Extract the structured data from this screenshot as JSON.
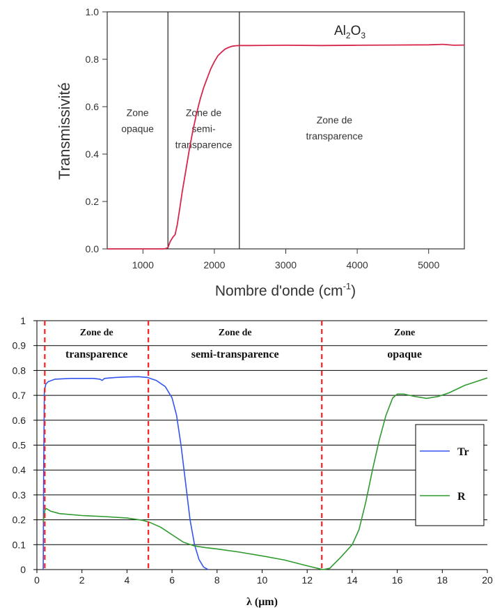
{
  "chart_data": [
    {
      "type": "line",
      "xlabel": "Nombre d'onde (cm",
      "xlabel_sup": "-1",
      "xlabel_end": ")",
      "ylabel": "Transmissivité",
      "xlim": [
        500,
        5500
      ],
      "ylim": [
        0,
        1.0
      ],
      "xticks": [
        1000,
        2000,
        3000,
        4000,
        5000
      ],
      "xtick_labels": [
        "1000",
        "2000",
        "3000",
        "4000",
        "5000"
      ],
      "yticks": [
        0.0,
        0.2,
        0.4,
        0.6,
        0.8,
        1.0
      ],
      "ytick_labels": [
        "0.0",
        "0.2",
        "0.4",
        "0.6",
        "0.8",
        "1.0"
      ],
      "vlines": [
        1350,
        2350
      ],
      "label": {
        "base": "Al",
        "sub1": "2",
        "mid": "O",
        "sub2": "3"
      },
      "zones": [
        {
          "lines": [
            "Zone",
            "opaque"
          ]
        },
        {
          "lines": [
            "Zone de",
            "semi-",
            "transparence"
          ]
        },
        {
          "lines": [
            "Zone de",
            "transparence"
          ]
        }
      ],
      "series": [
        {
          "color": "#d6264a",
          "points": [
            [
              500,
              0.0
            ],
            [
              1000,
              0.0
            ],
            [
              1300,
              0.0
            ],
            [
              1350,
              0.005
            ],
            [
              1380,
              0.03
            ],
            [
              1420,
              0.05
            ],
            [
              1450,
              0.06
            ],
            [
              1480,
              0.1
            ],
            [
              1520,
              0.18
            ],
            [
              1550,
              0.24
            ],
            [
              1600,
              0.33
            ],
            [
              1650,
              0.42
            ],
            [
              1700,
              0.5
            ],
            [
              1750,
              0.57
            ],
            [
              1800,
              0.63
            ],
            [
              1850,
              0.68
            ],
            [
              1900,
              0.72
            ],
            [
              1950,
              0.76
            ],
            [
              2000,
              0.79
            ],
            [
              2050,
              0.815
            ],
            [
              2100,
              0.83
            ],
            [
              2150,
              0.843
            ],
            [
              2200,
              0.85
            ],
            [
              2250,
              0.855
            ],
            [
              2300,
              0.857
            ],
            [
              2350,
              0.858
            ],
            [
              2500,
              0.858
            ],
            [
              3000,
              0.859
            ],
            [
              3500,
              0.858
            ],
            [
              4000,
              0.859
            ],
            [
              4500,
              0.86
            ],
            [
              5000,
              0.861
            ],
            [
              5200,
              0.863
            ],
            [
              5350,
              0.859
            ],
            [
              5500,
              0.86
            ]
          ]
        }
      ]
    },
    {
      "type": "line",
      "xlabel": "λ (μm)",
      "xlim": [
        0,
        20
      ],
      "ylim": [
        0,
        1
      ],
      "xticks": [
        0,
        2,
        4,
        6,
        8,
        10,
        12,
        14,
        16,
        18,
        20
      ],
      "xtick_labels": [
        "0",
        "2",
        "4",
        "6",
        "8",
        "10",
        "12",
        "14",
        "16",
        "18",
        "20"
      ],
      "yticks": [
        0,
        0.1,
        0.2,
        0.3,
        0.4,
        0.5,
        0.6,
        0.7,
        0.8,
        0.9,
        1
      ],
      "ytick_labels": [
        "0",
        "0.1",
        "0.2",
        "0.3",
        "0.4",
        "0.5",
        "0.6",
        "0.7",
        "0.8",
        "0.9",
        "1"
      ],
      "grid": "horizontal",
      "vlines_dashed": [
        0.35,
        4.95,
        12.65
      ],
      "vline_color": "#ff2020",
      "zones": [
        {
          "lines": [
            "Zone de",
            "transparence"
          ]
        },
        {
          "lines": [
            "Zone de",
            "semi-transparence"
          ]
        },
        {
          "lines": [
            "Zone",
            "opaque"
          ]
        }
      ],
      "legend_position": "right",
      "series": [
        {
          "name": "Tr",
          "color": "#3355ee",
          "points": [
            [
              0.28,
              0
            ],
            [
              0.3,
              0.4
            ],
            [
              0.33,
              0.72
            ],
            [
              0.4,
              0.745
            ],
            [
              0.5,
              0.755
            ],
            [
              0.8,
              0.765
            ],
            [
              1.5,
              0.768
            ],
            [
              2.5,
              0.768
            ],
            [
              2.8,
              0.765
            ],
            [
              2.9,
              0.76
            ],
            [
              3.0,
              0.768
            ],
            [
              3.5,
              0.772
            ],
            [
              4.0,
              0.774
            ],
            [
              4.5,
              0.775
            ],
            [
              4.9,
              0.772
            ],
            [
              5.3,
              0.76
            ],
            [
              5.7,
              0.735
            ],
            [
              6.0,
              0.69
            ],
            [
              6.2,
              0.62
            ],
            [
              6.4,
              0.5
            ],
            [
              6.6,
              0.35
            ],
            [
              6.8,
              0.2
            ],
            [
              7.0,
              0.1
            ],
            [
              7.2,
              0.04
            ],
            [
              7.4,
              0.01
            ],
            [
              7.6,
              0
            ]
          ]
        },
        {
          "name": "R",
          "color": "#2e9a2e",
          "points": [
            [
              0.28,
              0.19
            ],
            [
              0.32,
              0.22
            ],
            [
              0.36,
              0.24
            ],
            [
              0.42,
              0.245
            ],
            [
              0.6,
              0.235
            ],
            [
              1.0,
              0.225
            ],
            [
              2.0,
              0.217
            ],
            [
              3.0,
              0.213
            ],
            [
              4.0,
              0.207
            ],
            [
              4.7,
              0.198
            ],
            [
              5.0,
              0.19
            ],
            [
              5.5,
              0.17
            ],
            [
              6.0,
              0.14
            ],
            [
              6.5,
              0.11
            ],
            [
              7.0,
              0.095
            ],
            [
              7.5,
              0.088
            ],
            [
              8.0,
              0.083
            ],
            [
              9.0,
              0.07
            ],
            [
              10.0,
              0.055
            ],
            [
              11.0,
              0.038
            ],
            [
              12.0,
              0.015
            ],
            [
              12.7,
              0.0
            ],
            [
              13.0,
              0.005
            ],
            [
              13.5,
              0.05
            ],
            [
              14.0,
              0.1
            ],
            [
              14.3,
              0.16
            ],
            [
              14.6,
              0.27
            ],
            [
              14.9,
              0.4
            ],
            [
              15.2,
              0.52
            ],
            [
              15.5,
              0.62
            ],
            [
              15.8,
              0.69
            ],
            [
              16.0,
              0.705
            ],
            [
              16.3,
              0.705
            ],
            [
              16.8,
              0.695
            ],
            [
              17.3,
              0.688
            ],
            [
              17.8,
              0.695
            ],
            [
              18.3,
              0.71
            ],
            [
              19.0,
              0.74
            ],
            [
              20.0,
              0.77
            ]
          ]
        }
      ]
    }
  ]
}
